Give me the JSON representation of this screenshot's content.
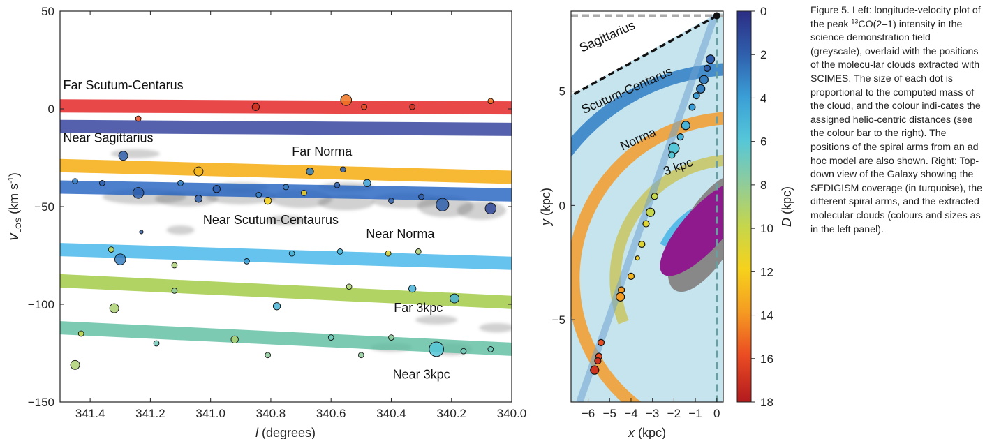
{
  "caption": {
    "figure_label": "Figure 5.",
    "text_before_iso": " Left: longitude-velocity plot of the peak ",
    "iso_sup": "13",
    "text_after_iso": "CO(2–1) intensity in the science demonstration field (greyscale), overlaid with the positions of the molecu-lar clouds extracted with SCIMES. The size of each dot is proportional to the computed mass of the cloud, and the colour indi-cates the assigned helio-centric distances (see the colour bar to the right). The positions of the spiral arms from an ad hoc model are also shown. Right: Top-down view of the Galaxy showing the SEDIGISM coverage (in turquoise), the different spiral arms, and the extracted molecular clouds (colours and sizes as in the left panel)."
  },
  "chart_data": [
    {
      "type": "scatter",
      "xlabel": "l (degrees)",
      "ylabel": "v_LOS (km s^-1)",
      "xlim": [
        341.5,
        340.0
      ],
      "ylim": [
        -150,
        50
      ],
      "xticks": [
        "341.4",
        "341.2",
        "341.0",
        "340.8",
        "340.6",
        "340.4",
        "340.2",
        "340.0"
      ],
      "yticks": [
        "50",
        "0",
        "−50",
        "−100",
        "−150"
      ],
      "xtick_values": [
        341.4,
        341.2,
        341.0,
        340.8,
        340.6,
        340.4,
        340.2,
        340.0
      ],
      "ytick_values": [
        50,
        0,
        -50,
        -100,
        -150
      ],
      "arms": [
        {
          "label": "Far Scutum-Centarus",
          "color": "#e31a1c",
          "v_start": 1.5,
          "v_end": 0.5,
          "label_l": 341.29,
          "label_v": 10
        },
        {
          "label": "",
          "color": "#2b3a98",
          "v_start": -9,
          "v_end": -10.5,
          "label_l": null,
          "label_v": null
        },
        {
          "label": "Near Sagittarius",
          "color": "#1f5fbf",
          "v_start": -40,
          "v_end": -44,
          "label_l": 341.34,
          "label_v": -17
        },
        {
          "label": "Far Norma",
          "color": "#f5a700",
          "v_start": -29,
          "v_end": -35,
          "label_l": 340.63,
          "label_v": -24
        },
        {
          "label": "Near Scutum-Centaurus",
          "color": "",
          "v_start": null,
          "v_end": null,
          "label_l": 340.8,
          "label_v": -59
        },
        {
          "label": "Near Norma",
          "color": "#3fb4ea",
          "v_start": -72,
          "v_end": -79,
          "label_l": 340.37,
          "label_v": -66
        },
        {
          "label": "Far 3kpc",
          "color": "#9ec83c",
          "v_start": -88,
          "v_end": -99,
          "label_l": 340.31,
          "label_v": -104
        },
        {
          "label": "Near 3kpc",
          "color": "#5dbda0",
          "v_start": -112,
          "v_end": -123,
          "label_l": 340.3,
          "label_v": -138
        }
      ],
      "clouds": [
        {
          "l": 341.24,
          "v": -5,
          "d": 16,
          "m": 3
        },
        {
          "l": 340.85,
          "v": 1,
          "d": 17,
          "m": 4
        },
        {
          "l": 340.55,
          "v": 4.5,
          "d": 15,
          "m": 6
        },
        {
          "l": 340.49,
          "v": 1,
          "d": 16,
          "m": 3
        },
        {
          "l": 340.33,
          "v": 1,
          "d": 17,
          "m": 3
        },
        {
          "l": 340.07,
          "v": 4,
          "d": 15,
          "m": 3
        },
        {
          "l": 341.29,
          "v": -24,
          "d": 2,
          "m": 5
        },
        {
          "l": 341.04,
          "v": -32,
          "d": 13,
          "m": 5
        },
        {
          "l": 340.67,
          "v": -32,
          "d": 3,
          "m": 4
        },
        {
          "l": 340.56,
          "v": -31,
          "d": 2,
          "m": 3
        },
        {
          "l": 341.45,
          "v": -37,
          "d": 3,
          "m": 3
        },
        {
          "l": 341.36,
          "v": -38,
          "d": 2,
          "m": 3
        },
        {
          "l": 341.24,
          "v": -43,
          "d": 2,
          "m": 6
        },
        {
          "l": 341.1,
          "v": -38,
          "d": 3,
          "m": 3
        },
        {
          "l": 340.98,
          "v": -41,
          "d": 2,
          "m": 4
        },
        {
          "l": 340.84,
          "v": -44,
          "d": 3,
          "m": 3
        },
        {
          "l": 340.75,
          "v": -40,
          "d": 3,
          "m": 3
        },
        {
          "l": 340.69,
          "v": -43,
          "d": 12,
          "m": 3
        },
        {
          "l": 340.58,
          "v": -39,
          "d": 2,
          "m": 3
        },
        {
          "l": 340.48,
          "v": -38,
          "d": 4,
          "m": 4
        },
        {
          "l": 341.04,
          "v": -46,
          "d": 2,
          "m": 4
        },
        {
          "l": 340.81,
          "v": -47,
          "d": 12,
          "m": 4
        },
        {
          "l": 340.4,
          "v": -47,
          "d": 2,
          "m": 3
        },
        {
          "l": 340.3,
          "v": -45,
          "d": 2,
          "m": 3
        },
        {
          "l": 340.23,
          "v": -49,
          "d": 2,
          "m": 7
        },
        {
          "l": 340.07,
          "v": -51,
          "d": 1,
          "m": 6
        },
        {
          "l": 341.23,
          "v": -63,
          "d": 2,
          "m": 2
        },
        {
          "l": 341.33,
          "v": -72,
          "d": 10,
          "m": 3
        },
        {
          "l": 341.3,
          "v": -77,
          "d": 3,
          "m": 6
        },
        {
          "l": 340.73,
          "v": -74,
          "d": 5,
          "m": 3
        },
        {
          "l": 340.57,
          "v": -73,
          "d": 5,
          "m": 3
        },
        {
          "l": 340.41,
          "v": -74,
          "d": 11,
          "m": 3
        },
        {
          "l": 340.31,
          "v": -73,
          "d": 9,
          "m": 3
        },
        {
          "l": 341.12,
          "v": -80,
          "d": 9,
          "m": 3
        },
        {
          "l": 340.88,
          "v": -78,
          "d": 4,
          "m": 3
        },
        {
          "l": 341.12,
          "v": -93,
          "d": 8,
          "m": 3
        },
        {
          "l": 340.54,
          "v": -91,
          "d": 9,
          "m": 3
        },
        {
          "l": 340.33,
          "v": -92,
          "d": 5,
          "m": 4
        },
        {
          "l": 340.19,
          "v": -97,
          "d": 5,
          "m": 5
        },
        {
          "l": 341.32,
          "v": -102,
          "d": 9,
          "m": 5
        },
        {
          "l": 340.78,
          "v": -101,
          "d": 5,
          "m": 4
        },
        {
          "l": 341.43,
          "v": -115,
          "d": 10,
          "m": 3
        },
        {
          "l": 341.18,
          "v": -120,
          "d": 7,
          "m": 3
        },
        {
          "l": 340.92,
          "v": -118,
          "d": 9,
          "m": 4
        },
        {
          "l": 340.6,
          "v": -117,
          "d": 7,
          "m": 3
        },
        {
          "l": 340.4,
          "v": -117,
          "d": 8,
          "m": 3
        },
        {
          "l": 340.25,
          "v": -123,
          "d": 6,
          "m": 8
        },
        {
          "l": 340.16,
          "v": -124,
          "d": 7,
          "m": 3
        },
        {
          "l": 340.07,
          "v": -123,
          "d": 7,
          "m": 3
        },
        {
          "l": 341.45,
          "v": -131,
          "d": 9,
          "m": 5
        },
        {
          "l": 340.81,
          "v": -126,
          "d": 8,
          "m": 3
        },
        {
          "l": 340.5,
          "v": -126,
          "d": 8,
          "m": 3
        }
      ]
    },
    {
      "type": "scatter",
      "xlabel": "x (kpc)",
      "ylabel": "y (kpc)",
      "xlim": [
        -6.8,
        0.3
      ],
      "ylim": [
        -8.6,
        8.5
      ],
      "xticks": [
        "−6",
        "−5",
        "−4",
        "−3",
        "−2",
        "−1",
        "0"
      ],
      "yticks": [
        "5",
        "0",
        "−5"
      ],
      "xtick_values": [
        -6,
        -5,
        -4,
        -3,
        -2,
        -1,
        0
      ],
      "ytick_values": [
        5,
        0,
        -5
      ],
      "arm_labels": [
        "Sagittarius",
        "Scutum-Centarus",
        "Norma",
        "3 kpc"
      ],
      "arm_colors": {
        "Sagittarius": "#2848a0",
        "Scutum-Centarus": "#f5a623",
        "Norma": "#e23030",
        "3 kpc": "#b0202c"
      },
      "coverage_color": "#add8e6",
      "clouds": [
        {
          "x": -0.3,
          "y": 6.4,
          "d": 2,
          "m": 4
        },
        {
          "x": -0.45,
          "y": 6.0,
          "d": 2,
          "m": 3
        },
        {
          "x": -0.6,
          "y": 5.5,
          "d": 3,
          "m": 4
        },
        {
          "x": -0.75,
          "y": 5.1,
          "d": 3,
          "m": 4
        },
        {
          "x": -0.95,
          "y": 4.8,
          "d": 4,
          "m": 3
        },
        {
          "x": -1.15,
          "y": 4.3,
          "d": 4,
          "m": 3
        },
        {
          "x": -1.45,
          "y": 3.5,
          "d": 5,
          "m": 4
        },
        {
          "x": -1.7,
          "y": 3.0,
          "d": 5,
          "m": 3
        },
        {
          "x": -2.0,
          "y": 2.5,
          "d": 6,
          "m": 5
        },
        {
          "x": -2.1,
          "y": 2.2,
          "d": 6,
          "m": 3
        },
        {
          "x": -2.9,
          "y": 0.4,
          "d": 10,
          "m": 3
        },
        {
          "x": -3.1,
          "y": -0.3,
          "d": 10,
          "m": 4
        },
        {
          "x": -3.3,
          "y": -0.8,
          "d": 11,
          "m": 3
        },
        {
          "x": -3.5,
          "y": -1.7,
          "d": 11,
          "m": 3
        },
        {
          "x": -3.7,
          "y": -2.3,
          "d": 12,
          "m": 2
        },
        {
          "x": -4.0,
          "y": -3.1,
          "d": 13,
          "m": 3
        },
        {
          "x": -4.45,
          "y": -3.7,
          "d": 14,
          "m": 3
        },
        {
          "x": -4.5,
          "y": -4.0,
          "d": 14,
          "m": 4
        },
        {
          "x": -5.4,
          "y": -6.0,
          "d": 16,
          "m": 3
        },
        {
          "x": -5.5,
          "y": -6.6,
          "d": 16,
          "m": 3
        },
        {
          "x": -5.55,
          "y": -6.8,
          "d": 17,
          "m": 3
        },
        {
          "x": -5.7,
          "y": -7.2,
          "d": 17,
          "m": 4
        }
      ]
    },
    {
      "type": "colorbar",
      "label": "D (kpc)",
      "range": [
        0,
        18
      ],
      "ticks": [
        "0",
        "2",
        "4",
        "6",
        "8",
        "10",
        "12",
        "14",
        "16",
        "18"
      ],
      "tick_values": [
        0,
        2,
        4,
        6,
        8,
        10,
        12,
        14,
        16,
        18
      ],
      "colormap": [
        "#2c2d84",
        "#2f5fac",
        "#3a9fd6",
        "#55c7d8",
        "#8fcc9b",
        "#c6d64b",
        "#f6d21c",
        "#f59b22",
        "#ea4c22",
        "#b21a1e"
      ]
    }
  ]
}
